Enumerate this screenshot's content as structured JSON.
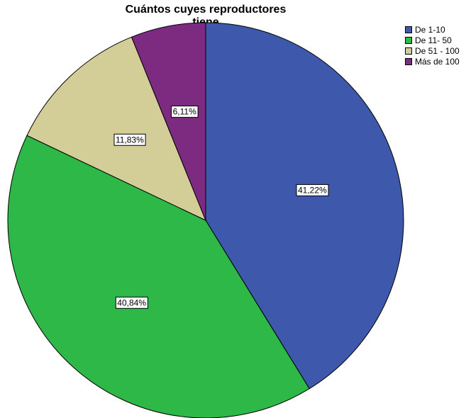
{
  "chart_data": {
    "type": "pie",
    "title": "Cuántos cuyes reproductores tiene",
    "legend_position": "top-right",
    "slices": [
      {
        "label": "De 1-10",
        "value": 41.22,
        "value_label": "41,22%",
        "color": "#3e58ac"
      },
      {
        "label": "De 11- 50",
        "value": 40.84,
        "value_label": "40,84%",
        "color": "#2eb848"
      },
      {
        "label": "De 51 - 100",
        "value": 11.83,
        "value_label": "11,83%",
        "color": "#d3ce97"
      },
      {
        "label": "Más de 100",
        "value": 6.11,
        "value_label": "6,11%",
        "color": "#7d2b81"
      }
    ]
  }
}
